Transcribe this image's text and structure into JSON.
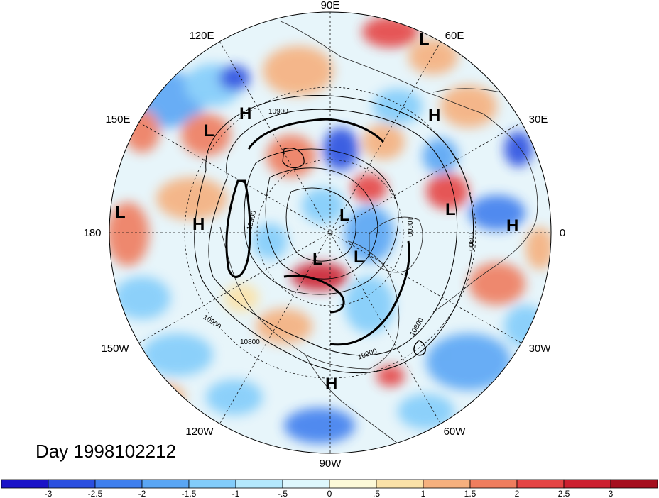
{
  "title": "Day 1998102212",
  "longitude_labels": {
    "top": "90E",
    "upper_left": "120E",
    "upper_right": "60E",
    "mid_upper_left": "150E",
    "mid_upper_right": "30E",
    "left": "180",
    "right": "0",
    "mid_lower_left": "150W",
    "mid_lower_right": "30W",
    "lower_left": "120W",
    "lower_right": "60W",
    "bottom": "90W"
  },
  "pressure_centers": [
    {
      "type": "L",
      "label": "L"
    },
    {
      "type": "H",
      "label": "H"
    },
    {
      "type": "L",
      "label": "L"
    },
    {
      "type": "H",
      "label": "H"
    },
    {
      "type": "L",
      "label": "L"
    },
    {
      "type": "H",
      "label": "H"
    },
    {
      "type": "L",
      "label": "L"
    },
    {
      "type": "L",
      "label": "L"
    },
    {
      "type": "H",
      "label": "H"
    },
    {
      "type": "L",
      "label": "L"
    },
    {
      "type": "L",
      "label": "L"
    },
    {
      "type": "H",
      "label": "H"
    }
  ],
  "contour_labels": [
    "10900",
    "10900",
    "10900",
    "10800",
    "10900",
    "10800",
    "10800",
    "10900"
  ],
  "colorbar": {
    "colors": [
      "#1b13c8",
      "#2b4fe0",
      "#3f7fee",
      "#5aa6f4",
      "#82ccfa",
      "#b4e8fc",
      "#def7fd",
      "#fdf9d8",
      "#fbe2a8",
      "#f5b07e",
      "#ef7d5e",
      "#e54444",
      "#cc2030",
      "#a50e1e"
    ],
    "tick_labels": [
      "-3",
      "-2.5",
      "-2",
      "-1.5",
      "-1",
      "-.5",
      "0",
      ".5",
      "1",
      "1.5",
      "2",
      "2.5",
      "3"
    ]
  },
  "palette": {
    "background": "#ffffff",
    "ocean_neutral": "#eef8fb"
  }
}
